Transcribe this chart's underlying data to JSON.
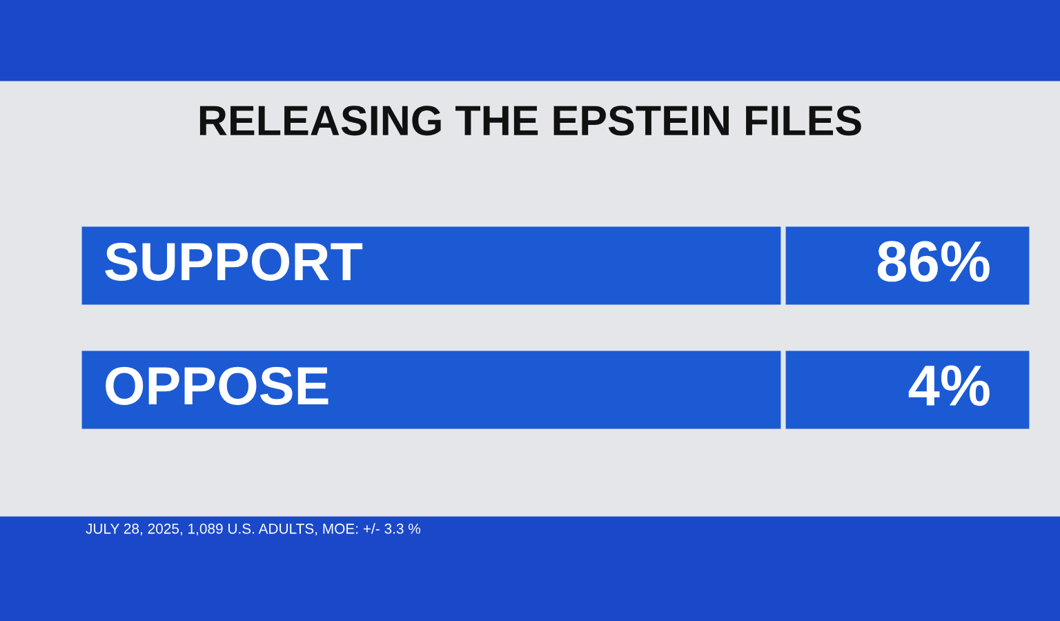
{
  "chart_data": {
    "type": "other",
    "title": "RELEASING THE EPSTEIN FILES",
    "categories": [
      "SUPPORT",
      "OPPOSE"
    ],
    "values": [
      86,
      4
    ],
    "value_labels": [
      "86%",
      "4%"
    ],
    "color": "#1c5ad4",
    "annotations": [
      "JULY 28, 2025, 1,089 U.S. ADULTS, MOE: +/- 3.3 %"
    ]
  }
}
